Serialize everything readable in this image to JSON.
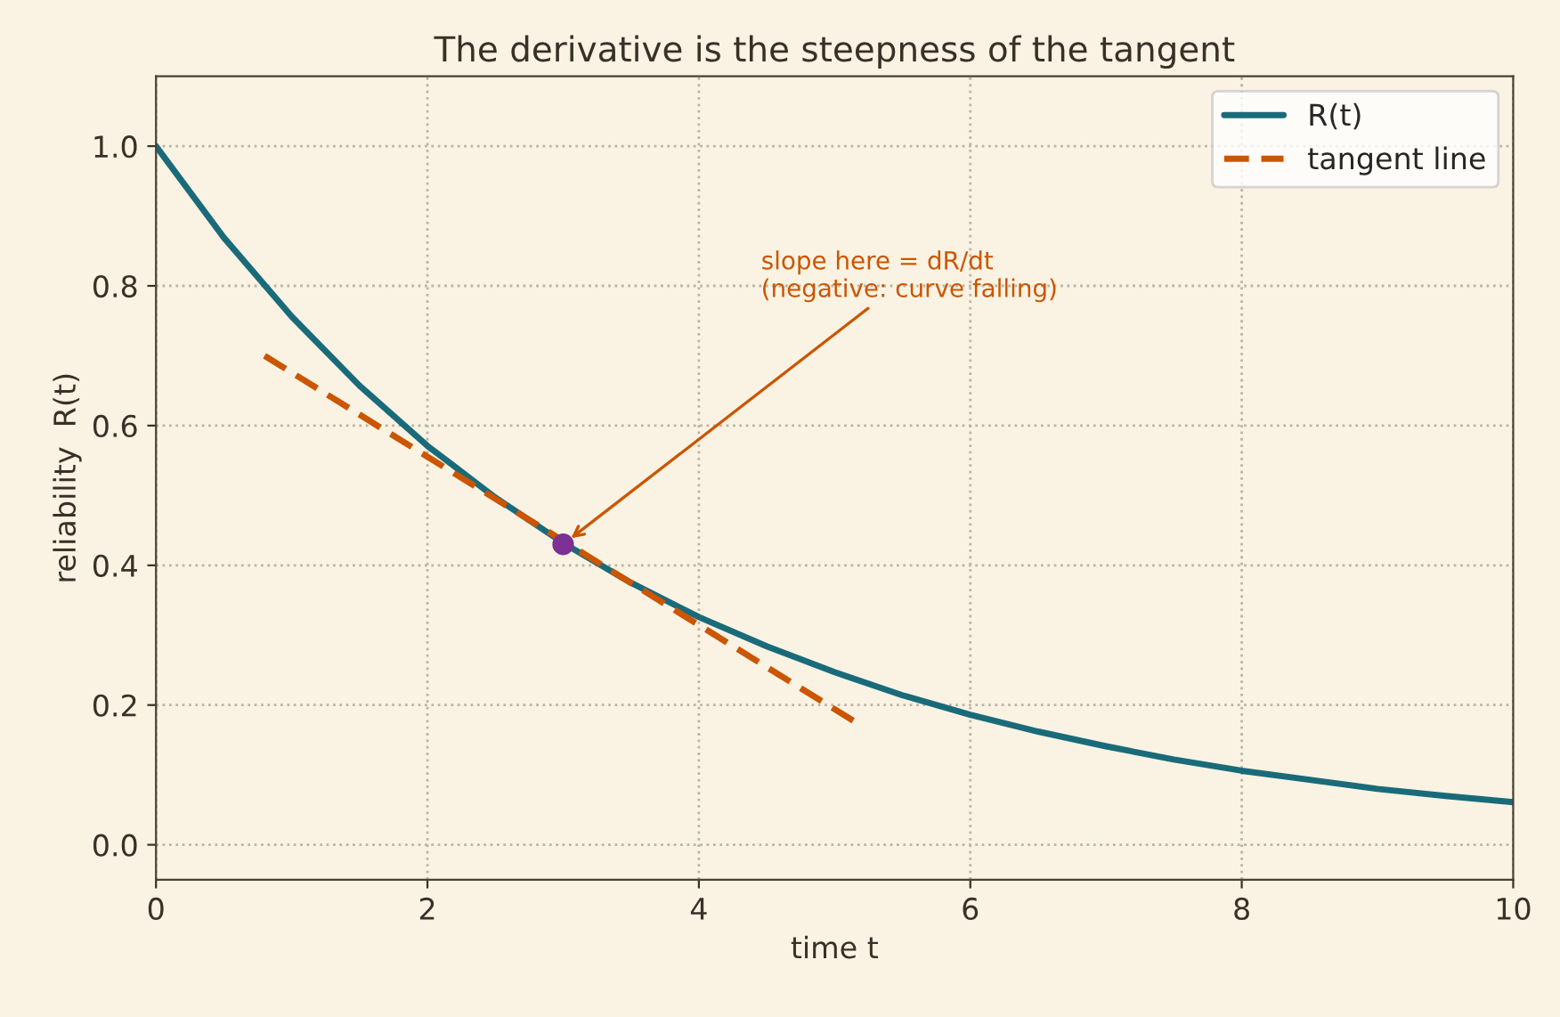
{
  "chart_data": {
    "type": "line",
    "title": "The derivative is the steepness of the tangent",
    "xlabel": "time t",
    "ylabel": "reliability  R(t)",
    "series": [
      {
        "name": "R(t)",
        "color": "#1a6b7a",
        "line_style": "solid",
        "x": [
          0,
          0.5,
          1,
          1.5,
          2,
          2.5,
          3,
          3.5,
          4,
          4.5,
          5,
          5.5,
          6,
          6.5,
          7,
          7.5,
          8,
          8.5,
          9,
          9.5,
          10
        ],
        "values": [
          1.0,
          0.869,
          0.756,
          0.657,
          0.571,
          0.497,
          0.432,
          0.375,
          0.326,
          0.284,
          0.247,
          0.214,
          0.186,
          0.162,
          0.141,
          0.122,
          0.106,
          0.093,
          0.08,
          0.07,
          0.061
        ]
      },
      {
        "name": "tangent line",
        "color": "#cc5500",
        "line_style": "dashed",
        "x": [
          0.8,
          5.2
        ],
        "values": [
          0.7,
          0.17
        ]
      },
      {
        "type": "scatter",
        "color": "#7b3294",
        "marker": "circle",
        "x": [
          3
        ],
        "values": [
          0.43
        ]
      }
    ],
    "annotations": [
      {
        "text": "slope here = dR/dt\n(negative: curve falling)",
        "x": 3,
        "y": 0.43
      }
    ],
    "xlim": [
      0,
      10
    ],
    "ylim": [
      -0.05,
      1.1
    ],
    "xticks": [
      0,
      2,
      4,
      6,
      8,
      10
    ],
    "yticks": [
      {
        "value": 0,
        "label": "0.0"
      },
      {
        "value": 0.2,
        "label": "0.2"
      },
      {
        "value": 0.4,
        "label": "0.4"
      },
      {
        "value": 0.6,
        "label": "0.6"
      },
      {
        "value": 0.8,
        "label": "0.8"
      },
      {
        "value": 1.0,
        "label": "1.0"
      }
    ],
    "grid": true,
    "legend": "top right"
  }
}
